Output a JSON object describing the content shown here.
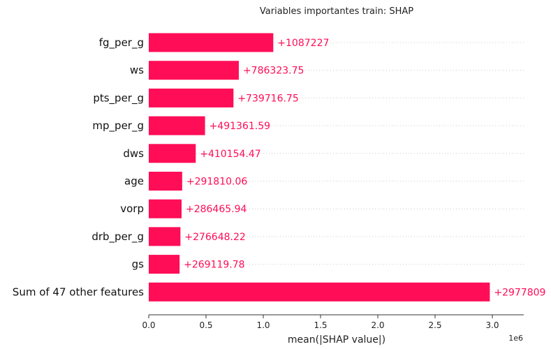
{
  "chart_data": {
    "type": "bar",
    "orientation": "horizontal",
    "title": "Variables importantes train: SHAP",
    "xlabel": "mean(|SHAP value|)",
    "ylabel": "",
    "x_exponent_label": "1e6",
    "x_scale": 1000000,
    "xlim": [
      0,
      3.25
    ],
    "x_ticks": [
      0.0,
      0.5,
      1.0,
      1.5,
      2.0,
      2.5,
      3.0
    ],
    "x_tick_labels": [
      "0.0",
      "0.5",
      "1.0",
      "1.5",
      "2.0",
      "2.5",
      "3.0"
    ],
    "categories": [
      "fg_per_g",
      "ws",
      "pts_per_g",
      "mp_per_g",
      "dws",
      "age",
      "vorp",
      "drb_per_g",
      "gs",
      "Sum of 47 other features"
    ],
    "values": [
      1087227,
      786323.75,
      739716.75,
      491361.59,
      410154.47,
      291810.06,
      286465.94,
      276648.22,
      269119.78,
      2977809
    ],
    "value_labels": [
      "+1087227",
      "+786323.75",
      "+739716.75",
      "+491361.59",
      "+410154.47",
      "+291810.06",
      "+286465.94",
      "+276648.22",
      "+269119.78",
      "+2977809"
    ],
    "bar_color": "#ff0d57",
    "grid": "horizontal dotted lines per category",
    "legend": "none"
  }
}
